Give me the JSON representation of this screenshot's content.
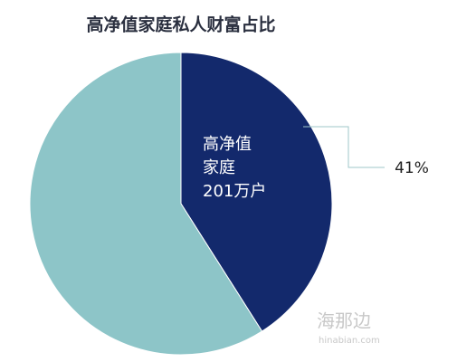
{
  "chart_data": {
    "type": "pie",
    "title": "高净值家庭私人财富占比",
    "values": [
      41,
      59
    ],
    "value_labels": [
      "41%",
      null
    ],
    "colors": [
      "#13296c",
      "#8dc5c8"
    ],
    "annotations": [
      "高净值",
      "家庭",
      "201万户"
    ],
    "watermark": [
      "海那边",
      "hinabian.com"
    ]
  }
}
